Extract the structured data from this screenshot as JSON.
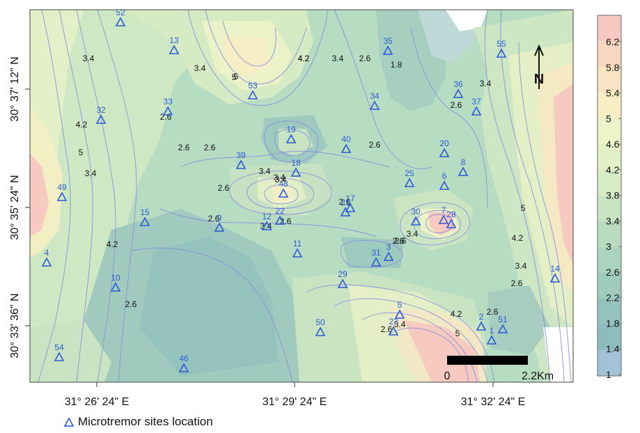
{
  "map": {
    "lat_labels": [
      "30° 37' 12\" N",
      "30° 35' 24\" N",
      "30° 33' 36\" N"
    ],
    "lon_labels": [
      "31° 26' 24\" E",
      "31° 29' 24\" E",
      "31° 32' 24\" E"
    ],
    "contour_labels": [
      "3.4",
      "4.2",
      "5",
      "3.4",
      "4.2",
      "3.4",
      "2.6",
      "1.8",
      "5",
      "2.6",
      "2.6",
      "2.6",
      "3.4",
      "2.6",
      "3.4",
      "2.6",
      "2.6",
      "3.4",
      "2.6",
      "3.4",
      "2.6",
      "2.6",
      "4.2",
      "5",
      "2.6",
      "2.6",
      "4.2",
      "5",
      "3.4",
      "2.6",
      "4.2",
      "3.4",
      "2.6",
      "3.4",
      "3.4",
      "5",
      "4.2",
      "2.6",
      "3.4",
      "2.6"
    ],
    "sites": [
      {
        "id": "52"
      },
      {
        "id": "13"
      },
      {
        "id": "53"
      },
      {
        "id": "35"
      },
      {
        "id": "55"
      },
      {
        "id": "36"
      },
      {
        "id": "37"
      },
      {
        "id": "33"
      },
      {
        "id": "32"
      },
      {
        "id": "34"
      },
      {
        "id": "19"
      },
      {
        "id": "40"
      },
      {
        "id": "20"
      },
      {
        "id": "8"
      },
      {
        "id": "39"
      },
      {
        "id": "18"
      },
      {
        "id": "48"
      },
      {
        "id": "25"
      },
      {
        "id": "6"
      },
      {
        "id": "49"
      },
      {
        "id": "21"
      },
      {
        "id": "17"
      },
      {
        "id": "15"
      },
      {
        "id": "9"
      },
      {
        "id": "12"
      },
      {
        "id": "22"
      },
      {
        "id": "30"
      },
      {
        "id": "7"
      },
      {
        "id": "28"
      },
      {
        "id": "4"
      },
      {
        "id": "11"
      },
      {
        "id": "31"
      },
      {
        "id": "3"
      },
      {
        "id": "10"
      },
      {
        "id": "29"
      },
      {
        "id": "14"
      },
      {
        "id": "5"
      },
      {
        "id": "2"
      },
      {
        "id": "51"
      },
      {
        "id": "23"
      },
      {
        "id": "1"
      },
      {
        "id": "50"
      },
      {
        "id": "54"
      },
      {
        "id": "46"
      }
    ]
  },
  "legend": {
    "values": [
      "6.2",
      "5.8",
      "5.4",
      "5",
      "4.6",
      "4.2",
      "3.8",
      "3.4",
      "3",
      "2.6",
      "2.2",
      "1.8",
      "1.4",
      "1"
    ],
    "colors": [
      "#f6c9c1",
      "#f8d6c0",
      "#f8e3c2",
      "#f7eec6",
      "#eef3c8",
      "#e3efc6",
      "#d7ebc4",
      "#c8e4c2",
      "#b9dcc1",
      "#aad4c0",
      "#a0cbbf",
      "#96c2bd",
      "#8fbbbd",
      "#a3c2d6"
    ]
  },
  "scale_bar": {
    "start_label": "0",
    "end_label": "2.2Km"
  },
  "north_arrow": {
    "label": "N"
  },
  "caption": {
    "text": "Microtremor sites location",
    "icon": "triangle-icon"
  }
}
